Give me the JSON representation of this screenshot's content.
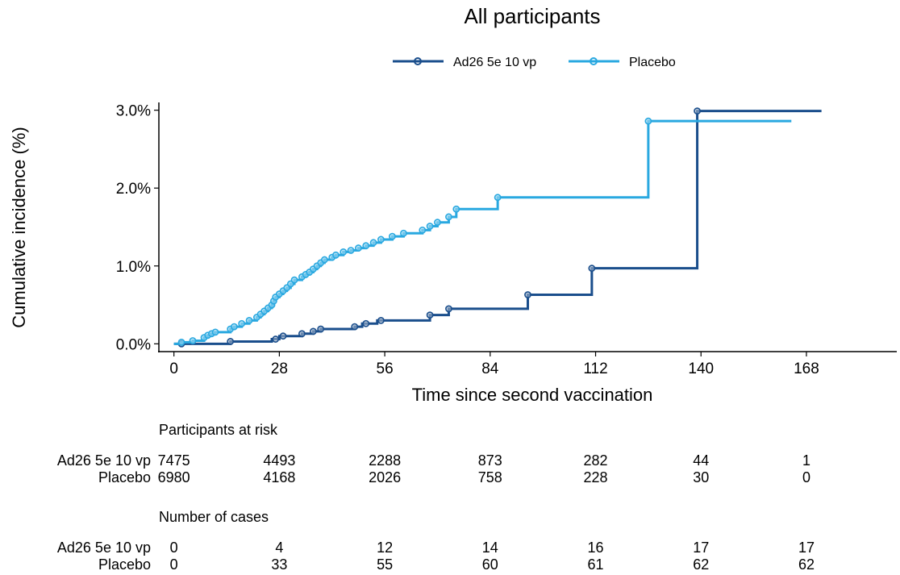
{
  "chart_data": {
    "type": "line",
    "step": true,
    "title": "All participants",
    "xlabel": "Time since second vaccination",
    "ylabel": "Cumulative incidence (%)",
    "xlim": [
      -4,
      192
    ],
    "ylim": [
      -0.1,
      3.1
    ],
    "xticks": [
      0,
      28,
      56,
      84,
      112,
      140,
      168
    ],
    "yticks": [
      0,
      1,
      2,
      3
    ],
    "ytick_labels": [
      "0.0%",
      "1.0%",
      "2.0%",
      "3.0%"
    ],
    "legend": "top",
    "series": [
      {
        "name": "Ad26 5e 10 vp",
        "color": "#1a4e8c",
        "points": [
          [
            0,
            0
          ],
          [
            15,
            0.03
          ],
          [
            26,
            0.06
          ],
          [
            28,
            0.1
          ],
          [
            34,
            0.13
          ],
          [
            37,
            0.16
          ],
          [
            39,
            0.19
          ],
          [
            48,
            0.22
          ],
          [
            50,
            0.26
          ],
          [
            54,
            0.3
          ],
          [
            68,
            0.37
          ],
          [
            73,
            0.45
          ],
          [
            94,
            0.63
          ],
          [
            111,
            0.97
          ],
          [
            139,
            2.99
          ],
          [
            172,
            2.99
          ]
        ],
        "markers": [
          [
            2,
            0
          ],
          [
            15,
            0.03
          ],
          [
            27,
            0.06
          ],
          [
            29,
            0.1
          ],
          [
            34,
            0.13
          ],
          [
            37,
            0.16
          ],
          [
            39,
            0.19
          ],
          [
            48,
            0.22
          ],
          [
            51,
            0.26
          ],
          [
            55,
            0.3
          ],
          [
            68,
            0.37
          ],
          [
            73,
            0.45
          ],
          [
            94,
            0.63
          ],
          [
            111,
            0.97
          ],
          [
            139,
            2.99
          ]
        ]
      },
      {
        "name": "Placebo",
        "color": "#29a8e0",
        "points": [
          [
            0,
            0
          ],
          [
            2,
            0.02
          ],
          [
            5,
            0.04
          ],
          [
            8,
            0.08
          ],
          [
            9,
            0.11
          ],
          [
            10,
            0.13
          ],
          [
            11,
            0.15
          ],
          [
            15,
            0.19
          ],
          [
            16,
            0.22
          ],
          [
            18,
            0.26
          ],
          [
            20,
            0.3
          ],
          [
            22,
            0.34
          ],
          [
            23,
            0.38
          ],
          [
            24,
            0.42
          ],
          [
            25,
            0.46
          ],
          [
            26,
            0.5
          ],
          [
            26.5,
            0.55
          ],
          [
            27,
            0.6
          ],
          [
            28,
            0.64
          ],
          [
            29,
            0.68
          ],
          [
            30,
            0.72
          ],
          [
            31,
            0.77
          ],
          [
            32,
            0.82
          ],
          [
            34,
            0.86
          ],
          [
            35,
            0.89
          ],
          [
            36,
            0.92
          ],
          [
            37,
            0.96
          ],
          [
            38,
            1.0
          ],
          [
            39,
            1.04
          ],
          [
            40,
            1.08
          ],
          [
            42,
            1.11
          ],
          [
            43,
            1.14
          ],
          [
            45,
            1.18
          ],
          [
            47,
            1.2
          ],
          [
            49,
            1.23
          ],
          [
            51,
            1.26
          ],
          [
            53,
            1.3
          ],
          [
            55,
            1.34
          ],
          [
            58,
            1.38
          ],
          [
            61,
            1.42
          ],
          [
            66,
            1.46
          ],
          [
            68,
            1.51
          ],
          [
            70,
            1.56
          ],
          [
            73,
            1.63
          ],
          [
            75,
            1.73
          ],
          [
            86,
            1.88
          ],
          [
            126,
            2.86
          ],
          [
            164,
            2.86
          ]
        ],
        "markers": [
          [
            2,
            0.02
          ],
          [
            5,
            0.04
          ],
          [
            8,
            0.08
          ],
          [
            9,
            0.11
          ],
          [
            10,
            0.13
          ],
          [
            11,
            0.15
          ],
          [
            15,
            0.19
          ],
          [
            16,
            0.22
          ],
          [
            18,
            0.26
          ],
          [
            20,
            0.3
          ],
          [
            22,
            0.34
          ],
          [
            23,
            0.38
          ],
          [
            24,
            0.42
          ],
          [
            25,
            0.46
          ],
          [
            26,
            0.5
          ],
          [
            26.5,
            0.55
          ],
          [
            27,
            0.6
          ],
          [
            28,
            0.64
          ],
          [
            29,
            0.68
          ],
          [
            30,
            0.72
          ],
          [
            31,
            0.77
          ],
          [
            32,
            0.82
          ],
          [
            34,
            0.86
          ],
          [
            35,
            0.89
          ],
          [
            36,
            0.92
          ],
          [
            37,
            0.96
          ],
          [
            38,
            1.0
          ],
          [
            39,
            1.04
          ],
          [
            40,
            1.08
          ],
          [
            42,
            1.11
          ],
          [
            43,
            1.14
          ],
          [
            45,
            1.18
          ],
          [
            47,
            1.2
          ],
          [
            49,
            1.23
          ],
          [
            51,
            1.26
          ],
          [
            53,
            1.3
          ],
          [
            55,
            1.34
          ],
          [
            58,
            1.38
          ],
          [
            61,
            1.42
          ],
          [
            66,
            1.46
          ],
          [
            68,
            1.51
          ],
          [
            70,
            1.56
          ],
          [
            73,
            1.63
          ],
          [
            75,
            1.73
          ],
          [
            86,
            1.88
          ],
          [
            126,
            2.86
          ]
        ]
      }
    ],
    "risk_table": {
      "title": "Participants at risk",
      "rows": [
        {
          "label": "Ad26 5e 10 vp",
          "values": [
            "7475",
            "4493",
            "2288",
            "873",
            "282",
            "44",
            "1"
          ]
        },
        {
          "label": "Placebo",
          "values": [
            "6980",
            "4168",
            "2026",
            "758",
            "228",
            "30",
            "0"
          ]
        }
      ]
    },
    "cases_table": {
      "title": "Number of cases",
      "rows": [
        {
          "label": "Ad26 5e 10 vp",
          "values": [
            "0",
            "4",
            "12",
            "14",
            "16",
            "17",
            "17"
          ]
        },
        {
          "label": "Placebo",
          "values": [
            "0",
            "33",
            "55",
            "60",
            "61",
            "62",
            "62"
          ]
        }
      ]
    }
  }
}
